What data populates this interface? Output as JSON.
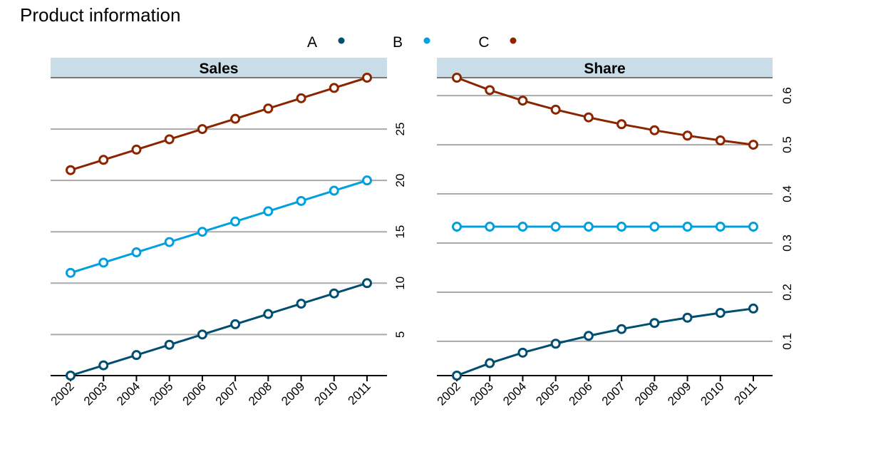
{
  "chart_data": {
    "title": "Product information",
    "type": "line",
    "x": [
      "2002",
      "2003",
      "2004",
      "2005",
      "2006",
      "2007",
      "2008",
      "2009",
      "2010",
      "2011"
    ],
    "legend": {
      "position": "top",
      "items": [
        {
          "label": "A",
          "color": "#004e70"
        },
        {
          "label": "B",
          "color": "#00a0e0"
        },
        {
          "label": "C",
          "color": "#8b2500"
        }
      ]
    },
    "grid": "horizontal",
    "panels": [
      {
        "title": "Sales",
        "y_axis_side": "right",
        "ylim": [
          1,
          30
        ],
        "yticks": [
          5,
          10,
          15,
          20,
          25
        ],
        "series": [
          {
            "name": "A",
            "color": "#004e70",
            "values": [
              1,
              2,
              3,
              4,
              5,
              6,
              7,
              8,
              9,
              10
            ]
          },
          {
            "name": "B",
            "color": "#00a0e0",
            "values": [
              11,
              12,
              13,
              14,
              15,
              16,
              17,
              18,
              19,
              20
            ]
          },
          {
            "name": "C",
            "color": "#8b2500",
            "values": [
              21,
              22,
              23,
              24,
              25,
              26,
              27,
              28,
              29,
              30
            ]
          }
        ]
      },
      {
        "title": "Share",
        "y_axis_side": "right",
        "ylim": [
          0.0303,
          0.6364
        ],
        "yticks": [
          0.1,
          0.2,
          0.3,
          0.4,
          0.5,
          0.6
        ],
        "series": [
          {
            "name": "A",
            "color": "#004e70",
            "values": [
              0.0303,
              0.0556,
              0.0769,
              0.0952,
              0.1111,
              0.125,
              0.1373,
              0.1481,
              0.1579,
              0.1667
            ]
          },
          {
            "name": "B",
            "color": "#00a0e0",
            "values": [
              0.3333,
              0.3333,
              0.3333,
              0.3333,
              0.3333,
              0.3333,
              0.3333,
              0.3333,
              0.3333,
              0.3333
            ]
          },
          {
            "name": "C",
            "color": "#8b2500",
            "values": [
              0.6364,
              0.6111,
              0.5897,
              0.5714,
              0.5556,
              0.5417,
              0.5294,
              0.5185,
              0.5088,
              0.5
            ]
          }
        ]
      }
    ]
  }
}
